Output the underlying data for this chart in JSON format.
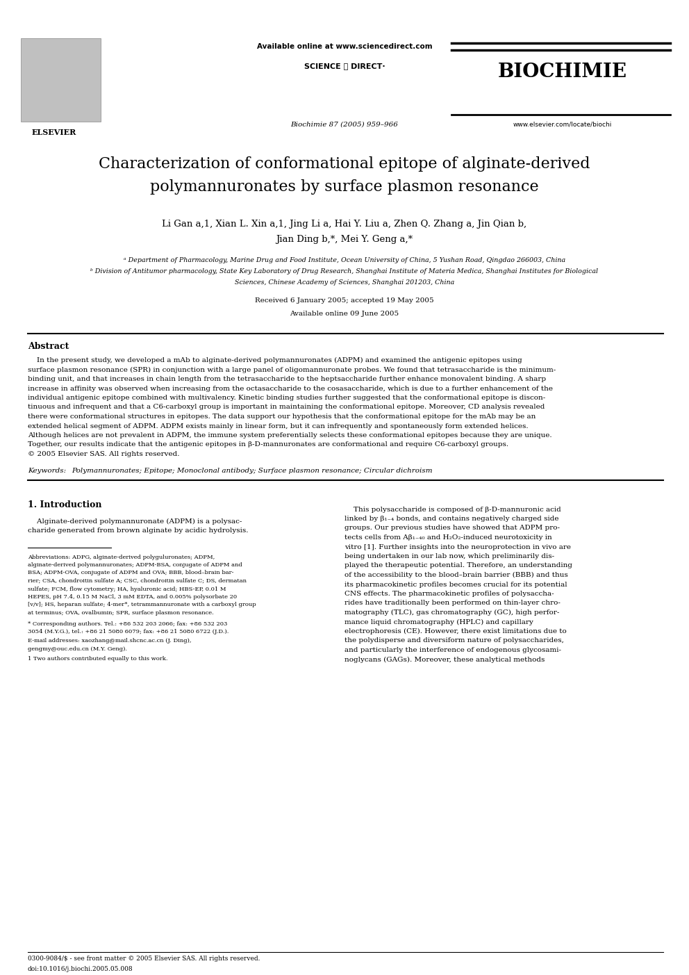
{
  "background_color": "#ffffff",
  "page_width": 9.92,
  "page_height": 14.03,
  "header_available_online": "Available online at www.sciencedirect.com",
  "header_scidir": "SCIENCE ⓐ DIRECT·",
  "header_journal": "BIOCHIMIE",
  "header_elsevier": "ELSEVIER",
  "header_biochimie_ref": "Biochimie 87 (2005) 959–966",
  "header_website": "www.elsevier.com/locate/biochi",
  "title_line1": "Characterization of conformational epitope of alginate-derived",
  "title_line2": "polymannuronates by surface plasmon resonance",
  "authors_line1": "Li Gan a,1, Xian L. Xin a,1, Jing Li a, Hai Y. Liu a, Zhen Q. Zhang a, Jin Qian b,",
  "authors_line2": "Jian Ding b,*, Mei Y. Geng a,*",
  "affil_a": "ᵃ Department of Pharmacology, Marine Drug and Food Institute, Ocean University of China, 5 Yushan Road, Qingdao 266003, China",
  "affil_b1": "ᵇ Division of Antitumor pharmacology, State Key Laboratory of Drug Research, Shanghai Institute of Materia Medica, Shanghai Institutes for Biological",
  "affil_b2": "Sciences, Chinese Academy of Sciences, Shanghai 201203, China",
  "received": "Received 6 January 2005; accepted 19 May 2005",
  "available_online_date": "Available online 09 June 2005",
  "abstract_title": "Abstract",
  "abstract_body": "    In the present study, we developed a mAb to alginate-derived polymannuronates (ADPM) and examined the antigenic epitopes using surface plasmon resonance (SPR) in conjunction with a large panel of oligomannuronate probes. We found that tetrasaccharide is the minimum-binding unit, and that increases in chain length from the tetrasaccharide to the heptsaccharide further enhance monovalent binding. A sharp increase in affinity was observed when increasing from the octasaccharide to the cosasaccharide, which is due to a further enhancement of the individual antigenic epitope combined with multivalency. Kinetic binding studies further suggested that the conformational epitope is discontinuous and infrequent and that a C6-carboxyl group is important in maintaining the conformational epitope. Moreover, CD analysis revealed there were conformational structures in epitopes. The data support our hypothesis that the conformational epitope for the mAb may be an extended helical segment of ADPM. ADPM exists mainly in linear form, but it can infrequently and spontaneously form extended helices. Although helices are not prevalent in ADPM, the immune system preferentially selects these conformational epitopes because they are unique. Together, our results indicate that the antigenic epitopes in β-D-mannuronates are conformational and require C6-carboxyl groups.\n© 2005 Elsevier SAS. All rights reserved.",
  "keywords_label": "Keywords:",
  "keywords": "Polymannuronates; Epitope; Monoclonal antibody; Surface plasmon resonance; Circular dichroism",
  "sec1_title": "1. Introduction",
  "sec1_col1_text": "    Alginate-derived polymannuronate (ADPM) is a polysac-\ncharide generated from brown alginate by acidic hydrolysis.",
  "sec1_col2_text": "    This polysaccharide is composed of β-D-mannuronic acid\nlinked by β₁₋₄ bonds, and contains negatively charged side\ngroups. Our previous studies have showed that ADPM pro-\ntects cells from Aβ₁₋₄₀ and H₂O₂-induced neurotoxicity in\nvitro [1]. Further insights into the neuroprotection in vivo are\nbeing undertaken in our lab now, which preliminarily dis-\nplayed the therapeutic potential. Therefore, an understanding\nof the accessibility to the blood–brain barrier (BBB) and thus\nits pharmacokinetic profiles becomes crucial for its potential\nCNS effects. The pharmacokinetic profiles of polysaccha-\nrides have traditionally been performed on thin-layer chro-\nmatography (TLC), gas chromatography (GC), high perfor-\nmance liquid chromatography (HPLC) and capillary\nelectrophoresis (CE). However, there exist limitations due to\nthe polydisperse and diversiform nature of polysaccharides,\nand particularly the interference of endogenous glycosami-\nnoglycans (GAGs). Moreover, these analytical methods",
  "footnote_abbrev": "Abbreviations: ADPG, alginate-derived polyguluronates; ADPM, alginate-derived polymannuronates; ADPM-BSA, conjugate of ADPM and BSA; ADPM-OVA, conjugate of ADPM and OVA; BBB, blood–brain barrier; CSA, chondroitin sulfate A; CSC, chondroitin sulfate C; DS, dermatan sulfate; FCM, flow cytometry; HA, hyaluronic acid; HBS-EP, 0.01 M HEPES, pH 7.4, 0.15 M NaCl, 3 mM EDTA, and 0.005% polysorbate 20 [v/v]; HS, heparan sulfate; 4-mer*, tetrammannuronate with a carboxyl group at terminus; OVA, ovalbumin; SPR, surface plasmon resonance.",
  "footnote_corresp": "* Corresponding authors. Tel.: +86 532 203 2066; fax: +86 532 203 3054 (M.Y.G.), tel.: +86 21 5080 6079; fax: +86 21 5080 6722 (J.D.).",
  "footnote_email_label": "E-mail addresses:",
  "footnote_email": "xaozhang@mail.shcnc.ac.cn (J. Ding), gengmy@ouc.edu.cn (M.Y. Geng).",
  "footnote_equal": "1 Two authors contributed equally to this work.",
  "issn": "0300-9084/$ - see front matter © 2005 Elsevier SAS. All rights reserved.",
  "doi": "doi:10.1016/j.biochi.2005.05.008"
}
